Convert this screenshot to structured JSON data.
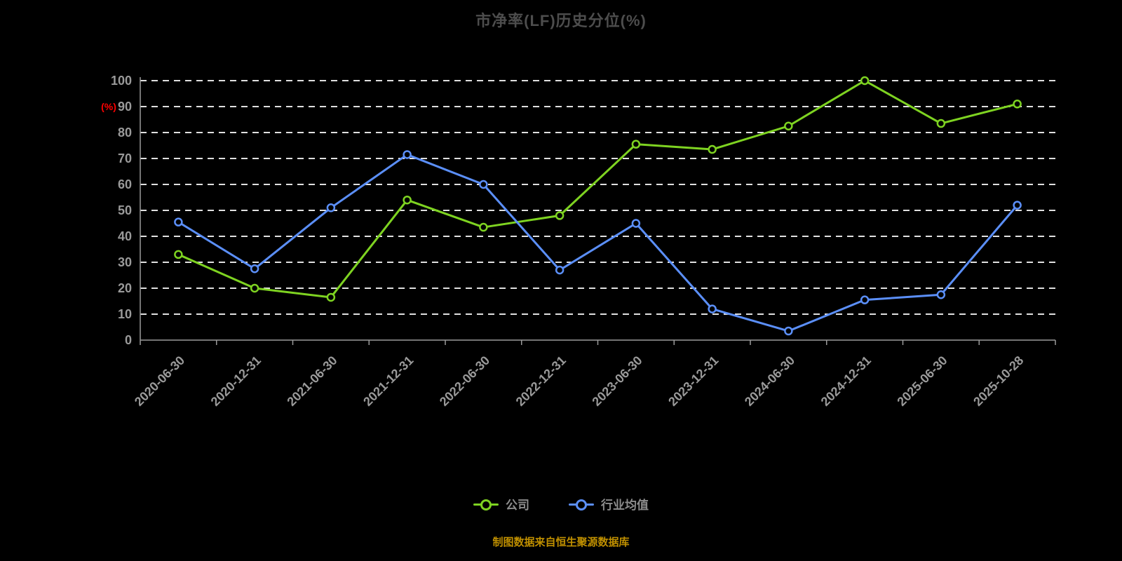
{
  "title": "市净率(LF)历史分位(%)",
  "footer": "制图数据来自恒生聚源数据库",
  "legend": [
    {
      "label": "公司",
      "color": "#7ed321"
    },
    {
      "label": "行业均值",
      "color": "#5b8ff9"
    }
  ],
  "chart_data": {
    "type": "line",
    "title": "市净率(LF)历史分位(%)",
    "ylabel": "(%)",
    "ylabel_color": "#ff0000",
    "xlabel": "",
    "ylim": [
      0,
      100
    ],
    "yticks": [
      0,
      10,
      20,
      30,
      40,
      50,
      60,
      70,
      80,
      90,
      100
    ],
    "grid": "dashed-horizontal",
    "legend_position": "bottom",
    "x": [
      "2020-06-30",
      "2020-12-31",
      "2021-06-30",
      "2021-12-31",
      "2022-06-30",
      "2022-12-31",
      "2023-06-30",
      "2023-12-31",
      "2024-06-30",
      "2024-12-31",
      "2025-06-30",
      "2025-10-28"
    ],
    "series": [
      {
        "name": "公司",
        "color": "#7ed321",
        "values": [
          33,
          20,
          16.5,
          54,
          43.5,
          48,
          75.5,
          73.5,
          82.5,
          100,
          83.5,
          91
        ]
      },
      {
        "name": "行业均值",
        "color": "#5b8ff9",
        "values": [
          45.5,
          27.5,
          51,
          71.5,
          60,
          27,
          45,
          12,
          3.5,
          15.5,
          17.5,
          52
        ]
      }
    ]
  }
}
